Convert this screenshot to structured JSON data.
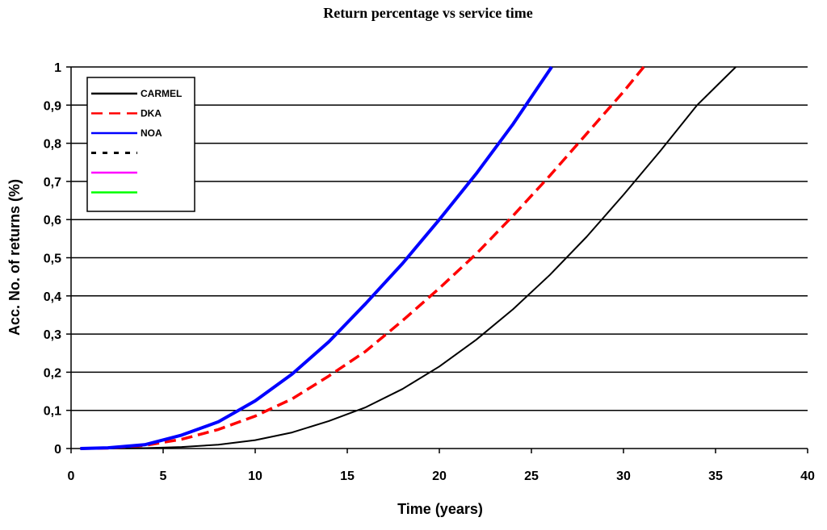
{
  "chart_data": {
    "type": "line",
    "title": "Return percentage vs service time",
    "xlabel": "Time (years)",
    "ylabel": "Acc. No. of returns (%)",
    "xlim": [
      0,
      40
    ],
    "ylim": [
      0,
      1
    ],
    "x_ticks": [
      "0",
      "5",
      "10",
      "15",
      "20",
      "25",
      "30",
      "35",
      "40"
    ],
    "y_ticks": [
      "0",
      "0,1",
      "0,2",
      "0,3",
      "0,4",
      "0,5",
      "0,6",
      "0,7",
      "0,8",
      "0,9",
      "1"
    ],
    "grid": "horizontal",
    "legend_position": "top-left",
    "series": [
      {
        "name": "CARMEL",
        "color": "#000000",
        "style": "solid",
        "points": [
          [
            0.5,
            0
          ],
          [
            2,
            0
          ],
          [
            4,
            0.001
          ],
          [
            6,
            0.004
          ],
          [
            8,
            0.01
          ],
          [
            10,
            0.022
          ],
          [
            12,
            0.042
          ],
          [
            14,
            0.072
          ],
          [
            16,
            0.108
          ],
          [
            18,
            0.156
          ],
          [
            20,
            0.215
          ],
          [
            22,
            0.285
          ],
          [
            24,
            0.365
          ],
          [
            26,
            0.455
          ],
          [
            28,
            0.555
          ],
          [
            30,
            0.665
          ],
          [
            32,
            0.78
          ],
          [
            34,
            0.9
          ],
          [
            36.1,
            1.0
          ]
        ]
      },
      {
        "name": "DKA",
        "color": "#ff0000",
        "style": "dashed",
        "points": [
          [
            0.5,
            0
          ],
          [
            2,
            0.001
          ],
          [
            4,
            0.008
          ],
          [
            6,
            0.024
          ],
          [
            8,
            0.05
          ],
          [
            10,
            0.085
          ],
          [
            12,
            0.13
          ],
          [
            14,
            0.19
          ],
          [
            16,
            0.255
          ],
          [
            18,
            0.335
          ],
          [
            20,
            0.42
          ],
          [
            22,
            0.51
          ],
          [
            24,
            0.61
          ],
          [
            26,
            0.715
          ],
          [
            28,
            0.825
          ],
          [
            30,
            0.935
          ],
          [
            31.1,
            1.0
          ]
        ]
      },
      {
        "name": "NOA",
        "color": "#0000ff",
        "style": "solid",
        "points": [
          [
            0.5,
            0
          ],
          [
            2,
            0.002
          ],
          [
            4,
            0.01
          ],
          [
            6,
            0.035
          ],
          [
            8,
            0.07
          ],
          [
            10,
            0.125
          ],
          [
            12,
            0.195
          ],
          [
            14,
            0.28
          ],
          [
            16,
            0.38
          ],
          [
            18,
            0.485
          ],
          [
            20,
            0.6
          ],
          [
            22,
            0.72
          ],
          [
            24,
            0.85
          ],
          [
            26.1,
            1.0
          ]
        ]
      },
      {
        "name": "",
        "color": "#000000",
        "style": "dotted",
        "points": []
      },
      {
        "name": "",
        "color": "#ff00ff",
        "style": "solid",
        "points": []
      },
      {
        "name": "",
        "color": "#00ff00",
        "style": "solid",
        "points": []
      }
    ]
  }
}
